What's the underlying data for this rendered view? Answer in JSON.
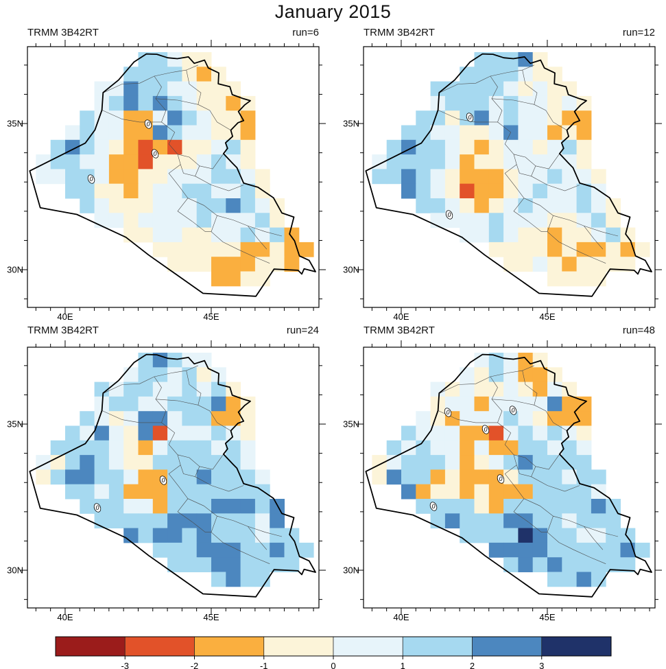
{
  "title": "January 2015",
  "axis": {
    "lat": [
      [
        "35N",
        35
      ],
      [
        "30N",
        30
      ]
    ],
    "lon": [
      [
        "40E",
        40
      ],
      [
        "45E",
        45
      ]
    ]
  },
  "colorbar": {
    "tick_labels": [
      "-3",
      "-2",
      "-1",
      "0",
      "1",
      "2",
      "3"
    ],
    "colors": [
      "#9B1C1B",
      "#E25229",
      "#FAAF3F",
      "#FCF4D9",
      "#E7F4FA",
      "#A6D9F0",
      "#4C87BF",
      "#1F3269"
    ],
    "bin_ranges": [
      "< -3",
      "-3 to -2",
      "-2 to -1",
      "-1 to 0",
      "0 to 1",
      "1 to 2",
      "2 to 3",
      "> 3"
    ]
  },
  "chart_data": {
    "type": "heatmap",
    "title": "January 2015",
    "dataset": "TRMM 3B42RT",
    "region": "Iraq",
    "x_axis": {
      "tick_labels": [
        "40E",
        "45E"
      ],
      "range_deg_east": [
        38.7,
        48.7
      ]
    },
    "y_axis": {
      "tick_labels": [
        "35N",
        "30N"
      ],
      "range_deg_north": [
        28.7,
        37.6
      ]
    },
    "grid_cell_deg": 0.5,
    "legend_position": "bottom",
    "value_bins": {
      "R": "< -3",
      "r": "-3 to -2",
      "o": "-2 to -1",
      "c": "-1 to 0",
      "p": "0 to 1",
      "b": "1 to 2",
      "B": "2 to 3",
      "N": "> 3",
      ".": "outside mask"
    },
    "panels": [
      {
        "dataset": "TRMM 3B42RT",
        "run_label": "run=6",
        "contour_label": "0",
        "zero_label_positions": [
          [
            216,
            141
          ],
          [
            226,
            184
          ],
          [
            133,
            221
          ]
        ],
        "rows": [
          ".......bbpcc.......",
          "......bbbbcoc......",
          "....ppBbbppccc.....",
          "....pbBbBbpccoc....",
          "...bppoopBbpcco....",
          "..pbppooBbppcco....",
          ".bBbpcororccpbc....",
          "pbbppoorcccpbpc....",
          "ppbbpooccpppbbpc...",
          "..bbccocppbbppbc...",
          "...bpcccpppbbBbpc..",
          "....ppcppppbpppbc..",
          "......ccppccppbpbo.",
          "........ccccccoocoo",
          ".........cccooocco.",
          "............oocc..."
        ]
      },
      {
        "dataset": "TRMM 3B42RT",
        "run_label": "run=12",
        "contour_label": "0",
        "zero_label_positions": [
          [
            195,
            131
          ],
          [
            165,
            273
          ]
        ],
        "rows": [
          ".......bbbBc.......",
          "......bbbbpcc......",
          "....bbbbbpcpcc.....",
          "....pbbbpbppcpc....",
          "...bbcbBpbppcoo....",
          "..bbppccpBppoco....",
          ".bBbbpcocppcpbc....",
          "pbbbbpoccpppppc....",
          "bbBbpcooocppbppc...",
          "..Bbpcroocpbppbp...",
          "...bbpcocpbpppbpc..",
          "....ppppbpppccpbc..",
          "......ppbpccoccpbc.",
          "........ccccocoococ",
          ".........ccpcocccc.",
          "............cccc..."
        ]
      },
      {
        "dataset": "TRMM 3B42RT",
        "run_label": "run=24",
        "contour_label": "0",
        "zero_label_positions": [
          [
            238,
            222
          ],
          [
            142,
            262
          ]
        ],
        "rows": [
          ".......bBbpp.......",
          "......pbbpbcp......",
          "....bpbbppbpbc.....",
          "....pbbppbbbBoc....",
          "...bpcpBBpbbooc....",
          "..bpBpcBrpppbpc....",
          ".bbbbpcopbbbpbp....",
          "pcbBbpccbbbbbbp....",
          "cbBBbbpoobbBbbbp...",
          "..bbpbooobbbbbbb...",
          "...bbbppobbbBBBbB..",
          "....bbbbbBBBbbbpB..",
          "......BbBBbBbbbpbb.",
          "........bbbBBBbbBbb",
          ".........bbbBBbbbb.",
          "............bBbb..."
        ]
      },
      {
        "dataset": "TRMM 3B42RT",
        "run_label": "run=48",
        "contour_label": "0",
        "zero_label_positions": [
          [
            163,
            123
          ],
          [
            258,
            120
          ],
          [
            218,
            148
          ],
          [
            240,
            220
          ],
          [
            142,
            260
          ]
        ],
        "rows": [
          ".......pbpoc.......",
          "......pcbpooc......",
          "....pcpccpcopc.....",
          "....cppoppppBoo....",
          "...pcopppbpcooo....",
          "..bpppoorpbpbpc....",
          ".bpbppopoobbpbp....",
          "cpbbbpocpbBbbbb....",
          "cBbbocooocbbbpbb...",
          "..Boccocooobbbbp...",
          "...bbbbcobbbbbbBb..",
          "....bBbbbBBbbpbbb..",
          "......bbbbNBbbppbb.",
          "........BBBBbbbbbBb",
          ".........bBbBbbbbb.",
          "............bbBb..."
        ]
      }
    ]
  }
}
